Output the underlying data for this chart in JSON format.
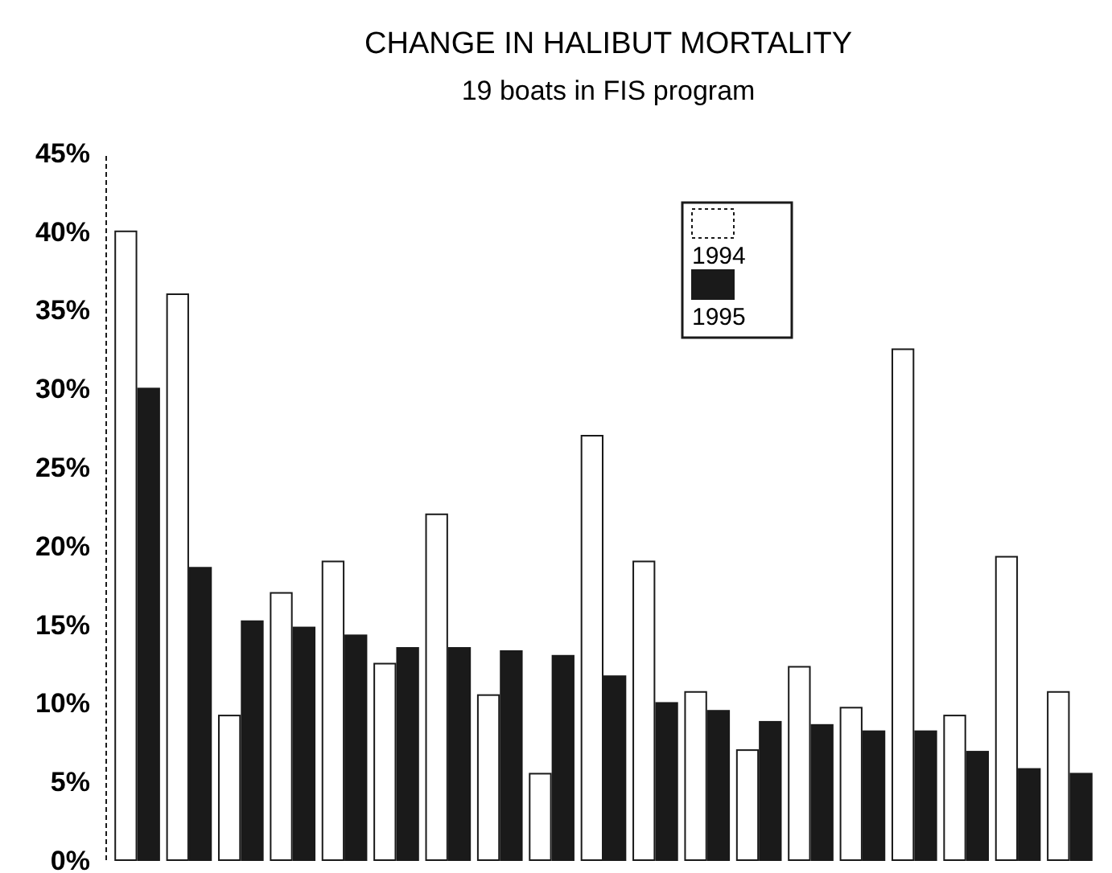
{
  "chart_data": {
    "type": "bar",
    "title": "CHANGE IN HALIBUT MORTALITY",
    "subtitle": "19 boats in FIS program",
    "categories": [
      null,
      null,
      null,
      null,
      null,
      null,
      null,
      null,
      null,
      null,
      null,
      null,
      null,
      null,
      null,
      null,
      null,
      null,
      null
    ],
    "series": [
      {
        "name": "1994",
        "color": "#ffffff",
        "values": [
          40,
          36,
          9.2,
          17,
          19,
          12.5,
          22,
          10.5,
          5.5,
          27,
          19,
          10.7,
          7,
          12.3,
          9.7,
          32.5,
          9.2,
          19.3,
          10.7
        ]
      },
      {
        "name": "1995",
        "color": "#1a1a1a",
        "values": [
          30,
          18.6,
          15.2,
          14.8,
          14.3,
          13.5,
          13.5,
          13.3,
          13,
          11.7,
          10,
          9.5,
          8.8,
          8.6,
          8.2,
          8.2,
          6.9,
          5.8,
          5.5
        ]
      }
    ],
    "ylim": [
      0,
      45
    ],
    "yticks": [
      {
        "value": 0,
        "label": "0%"
      },
      {
        "value": 5,
        "label": "5%"
      },
      {
        "value": 10,
        "label": "10%"
      },
      {
        "value": 15,
        "label": "15%"
      },
      {
        "value": 20,
        "label": "20%"
      },
      {
        "value": 25,
        "label": "25%"
      },
      {
        "value": 30,
        "label": "30%"
      },
      {
        "value": 35,
        "label": "35%"
      },
      {
        "value": 40,
        "label": "40%"
      },
      {
        "value": 45,
        "label": "45%"
      }
    ],
    "grid": false,
    "legend": "top right"
  }
}
